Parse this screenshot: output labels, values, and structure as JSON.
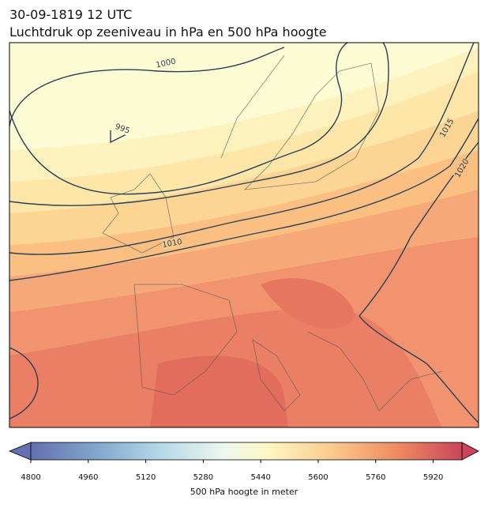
{
  "title": [
    "30-09-1819 12 UTC",
    "Luchtdruk op zeeniveau in hPa en 500 hPa hoogte"
  ],
  "isobar_labels": [
    "995",
    "1000",
    "1010",
    "1015",
    "1020"
  ],
  "colorbar": {
    "lim": [
      4800,
      6000
    ],
    "ticks": [
      4800,
      4960,
      5120,
      5280,
      5440,
      5600,
      5760,
      5920
    ],
    "label": "500 hPa hoogte in meter"
  }
}
